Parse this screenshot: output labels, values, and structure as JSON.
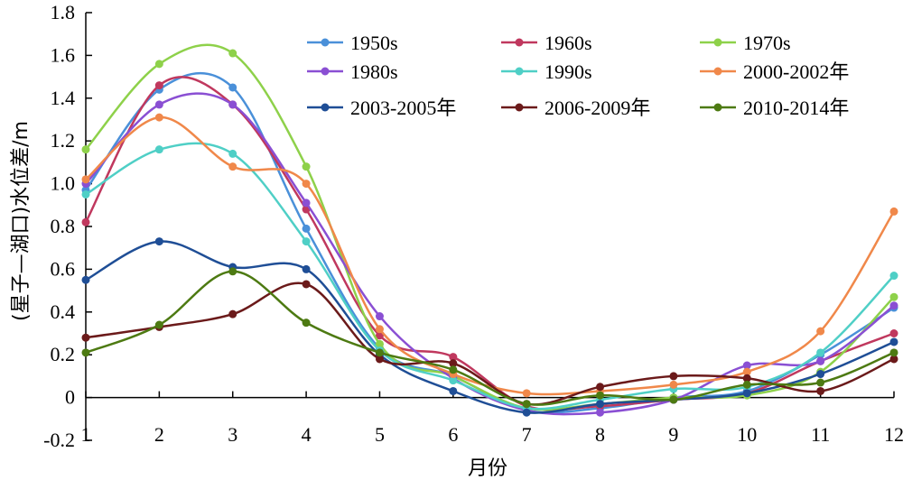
{
  "chart_data": {
    "type": "line",
    "xlabel": "月份",
    "ylabel": "(星子—湖口)水位差/m",
    "x": [
      1,
      2,
      3,
      4,
      5,
      6,
      7,
      8,
      9,
      10,
      11,
      12
    ],
    "ylim": [
      -0.2,
      1.8
    ],
    "yticks": [
      "-0.2",
      "0",
      "0.2",
      "0.4",
      "0.6",
      "0.8",
      "1.0",
      "1.2",
      "1.4",
      "1.6",
      "1.8"
    ],
    "ytick_values": [
      -0.2,
      0,
      0.2,
      0.4,
      0.6,
      0.8,
      1.0,
      1.2,
      1.4,
      1.6,
      1.8
    ],
    "xticks": [
      "1",
      "2",
      "3",
      "4",
      "5",
      "6",
      "7",
      "8",
      "9",
      "10",
      "11",
      "12"
    ],
    "grid": false,
    "legend_position": "top-right",
    "smooth": true,
    "series": [
      {
        "name": "1950s",
        "color": "#4a90d9",
        "values": [
          0.97,
          1.44,
          1.45,
          0.79,
          0.23,
          0.1,
          -0.06,
          -0.05,
          0.0,
          0.03,
          0.2,
          0.42
        ]
      },
      {
        "name": "1960s",
        "color": "#c0385e",
        "values": [
          0.82,
          1.46,
          1.37,
          0.88,
          0.29,
          0.19,
          -0.04,
          -0.04,
          -0.01,
          0.02,
          0.17,
          0.3
        ]
      },
      {
        "name": "1970s",
        "color": "#8ed14a",
        "values": [
          1.16,
          1.56,
          1.61,
          1.08,
          0.25,
          0.1,
          -0.05,
          -0.03,
          0.0,
          0.01,
          0.12,
          0.47
        ]
      },
      {
        "name": "1980s",
        "color": "#8a4fd3",
        "values": [
          1.0,
          1.37,
          1.37,
          0.91,
          0.38,
          0.09,
          -0.06,
          -0.07,
          -0.01,
          0.15,
          0.17,
          0.43
        ]
      },
      {
        "name": "1990s",
        "color": "#4fcfc6",
        "values": [
          0.95,
          1.16,
          1.14,
          0.73,
          0.22,
          0.08,
          -0.05,
          -0.01,
          0.04,
          0.05,
          0.21,
          0.57
        ]
      },
      {
        "name": "2000-2002年",
        "color": "#f0884a",
        "values": [
          1.02,
          1.31,
          1.08,
          1.0,
          0.32,
          0.11,
          0.02,
          0.03,
          0.06,
          0.12,
          0.31,
          0.87
        ]
      },
      {
        "name": "2003-2005年",
        "color": "#1f4e96",
        "values": [
          0.55,
          0.73,
          0.61,
          0.6,
          0.2,
          0.03,
          -0.07,
          -0.03,
          -0.01,
          0.02,
          0.11,
          0.26
        ]
      },
      {
        "name": "2006-2009年",
        "color": "#6b1a1a",
        "values": [
          0.28,
          0.33,
          0.39,
          0.53,
          0.18,
          0.16,
          -0.03,
          0.05,
          0.1,
          0.09,
          0.03,
          0.18
        ]
      },
      {
        "name": "2010-2014年",
        "color": "#4d7a12",
        "values": [
          0.21,
          0.34,
          0.59,
          0.35,
          0.21,
          0.13,
          -0.03,
          0.01,
          -0.01,
          0.06,
          0.07,
          0.21
        ]
      }
    ]
  }
}
